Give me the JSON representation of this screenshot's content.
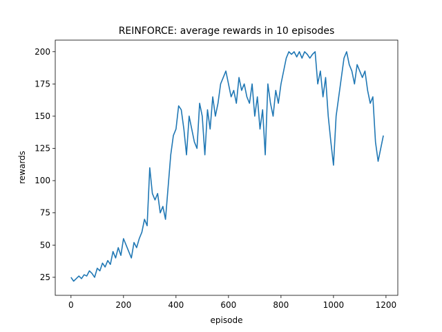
{
  "chart_data": {
    "type": "line",
    "title": "REINFORCE: average rewards in 10 episodes",
    "xlabel": "episode",
    "ylabel": "rewards",
    "xlim": [
      -60,
      1245
    ],
    "ylim": [
      11,
      209
    ],
    "xticks": [
      0,
      200,
      400,
      600,
      800,
      1000,
      1200
    ],
    "yticks": [
      25,
      50,
      75,
      100,
      125,
      150,
      175,
      200
    ],
    "grid": false,
    "legend": "none",
    "series": [
      {
        "color": "#1f77b4",
        "x": [
          0,
          10,
          20,
          30,
          40,
          50,
          60,
          70,
          80,
          90,
          100,
          110,
          120,
          130,
          140,
          150,
          160,
          170,
          180,
          190,
          200,
          210,
          220,
          230,
          240,
          250,
          260,
          270,
          280,
          290,
          300,
          310,
          320,
          330,
          340,
          350,
          360,
          370,
          380,
          390,
          400,
          410,
          420,
          430,
          440,
          450,
          460,
          470,
          480,
          490,
          500,
          510,
          520,
          530,
          540,
          550,
          560,
          570,
          580,
          590,
          600,
          610,
          620,
          630,
          640,
          650,
          660,
          670,
          680,
          690,
          700,
          710,
          720,
          730,
          740,
          750,
          760,
          770,
          780,
          790,
          800,
          810,
          820,
          830,
          840,
          850,
          860,
          870,
          880,
          890,
          900,
          910,
          920,
          930,
          940,
          950,
          960,
          970,
          980,
          990,
          1000,
          1010,
          1020,
          1030,
          1040,
          1050,
          1060,
          1070,
          1080,
          1090,
          1100,
          1110,
          1120,
          1130,
          1140,
          1150,
          1160,
          1170,
          1180,
          1190
        ],
        "values": [
          25,
          22,
          24,
          26,
          24,
          27,
          26,
          30,
          28,
          25,
          32,
          30,
          36,
          33,
          38,
          35,
          45,
          40,
          48,
          42,
          55,
          50,
          45,
          40,
          52,
          48,
          55,
          60,
          70,
          65,
          110,
          90,
          85,
          90,
          75,
          80,
          70,
          95,
          120,
          135,
          140,
          158,
          155,
          140,
          120,
          150,
          140,
          130,
          125,
          160,
          150,
          120,
          155,
          140,
          165,
          150,
          160,
          175,
          180,
          185,
          175,
          165,
          170,
          160,
          180,
          170,
          175,
          165,
          160,
          175,
          150,
          165,
          140,
          155,
          120,
          175,
          160,
          150,
          170,
          160,
          175,
          185,
          195,
          200,
          198,
          200,
          196,
          200,
          195,
          200,
          198,
          195,
          198,
          200,
          175,
          185,
          165,
          180,
          150,
          130,
          112,
          150,
          165,
          180,
          195,
          200,
          190,
          185,
          175,
          190,
          185,
          180,
          185,
          170,
          160,
          165,
          130,
          115,
          125,
          135
        ]
      }
    ]
  }
}
